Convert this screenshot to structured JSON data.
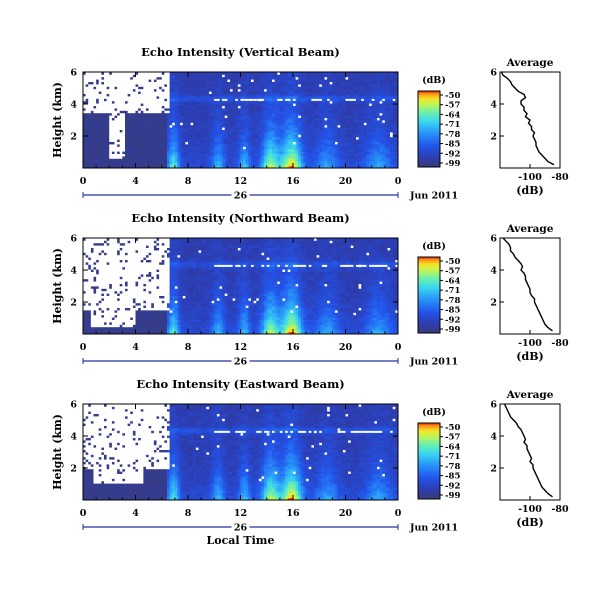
{
  "chart_data": [
    {
      "type": "heatmap",
      "title": "Echo Intensity (Vertical Beam)",
      "ylabel": "Height (km)",
      "ylim": [
        0,
        6
      ],
      "yticks": [
        "6",
        "4",
        "2"
      ],
      "xlim": [
        0,
        24
      ],
      "xticks": [
        "0",
        "4",
        "8",
        "12",
        "16",
        "20",
        "0"
      ],
      "day_label": "26",
      "date_label": "Jun 2011",
      "colorbar": {
        "unit": "(dB)",
        "ticks": [
          "-50",
          "-57",
          "-64",
          "-71",
          "-78",
          "-85",
          "-92",
          "-99"
        ]
      },
      "no_data_until_hour": 6.5,
      "no_data_blocks": [
        [
          0,
          3.5,
          6.5,
          6.0
        ],
        [
          2.0,
          0.6,
          3.2,
          3.6
        ]
      ]
    },
    {
      "type": "heatmap",
      "title": "Echo Intensity (Northward Beam)",
      "ylabel": "Height (km)",
      "ylim": [
        0,
        6
      ],
      "yticks": [
        "6",
        "4",
        "2"
      ],
      "xlim": [
        0,
        24
      ],
      "xticks": [
        "0",
        "4",
        "8",
        "12",
        "16",
        "20",
        "0"
      ],
      "day_label": "26",
      "date_label": "Jun 2011",
      "colorbar": {
        "unit": "(dB)",
        "ticks": [
          "-50",
          "-57",
          "-64",
          "-71",
          "-78",
          "-85",
          "-92",
          "-99"
        ]
      },
      "no_data_until_hour": 6.5,
      "no_data_blocks": [
        [
          0,
          1.5,
          6.5,
          6.0
        ],
        [
          0.6,
          0.5,
          4.0,
          2.2
        ]
      ]
    },
    {
      "type": "heatmap",
      "title": "Echo Intensity (Eastward Beam)",
      "ylabel": "Height (km)",
      "xlabel": "Local Time",
      "ylim": [
        0,
        6
      ],
      "yticks": [
        "6",
        "4",
        "2"
      ],
      "xlim": [
        0,
        24
      ],
      "xticks": [
        "0",
        "4",
        "8",
        "12",
        "16",
        "20",
        "0"
      ],
      "day_label": "26",
      "date_label": "Jun 2011",
      "colorbar": {
        "unit": "(dB)",
        "ticks": [
          "-50",
          "-57",
          "-64",
          "-71",
          "-78",
          "-85",
          "-92",
          "-99"
        ]
      },
      "no_data_until_hour": 6.5,
      "no_data_blocks": [
        [
          0,
          2.0,
          6.5,
          6.0
        ],
        [
          0.8,
          1.0,
          4.5,
          3.2
        ]
      ]
    },
    {
      "type": "line",
      "title": "Average",
      "xlabel": "(dB)",
      "xlim": [
        -120,
        -80
      ],
      "xticks": [
        "-100",
        "-80"
      ],
      "ylim": [
        0,
        6
      ],
      "yticks": [
        "6",
        "4",
        "2"
      ],
      "y": [
        6.0,
        5.8,
        5.6,
        5.4,
        5.2,
        5.0,
        4.8,
        4.6,
        4.4,
        4.2,
        4.0,
        3.8,
        3.6,
        3.4,
        3.2,
        3.0,
        2.8,
        2.6,
        2.4,
        2.2,
        2.0,
        1.8,
        1.6,
        1.4,
        1.2,
        1.0,
        0.8,
        0.6,
        0.4,
        0.2
      ],
      "x": [
        -119,
        -118,
        -115,
        -113,
        -112,
        -110,
        -108,
        -104,
        -103,
        -106,
        -106,
        -104,
        -104,
        -102,
        -103,
        -100,
        -101,
        -99,
        -99,
        -97,
        -98,
        -97,
        -96,
        -96,
        -95,
        -94,
        -92,
        -90,
        -88,
        -84
      ]
    },
    {
      "type": "line",
      "title": "Average",
      "xlabel": "(dB)",
      "xlim": [
        -120,
        -80
      ],
      "xticks": [
        "-100",
        "-80"
      ],
      "ylim": [
        0,
        6
      ],
      "yticks": [
        "6",
        "4",
        "2"
      ],
      "y": [
        6.0,
        5.8,
        5.6,
        5.4,
        5.2,
        5.0,
        4.8,
        4.6,
        4.4,
        4.2,
        4.0,
        3.8,
        3.6,
        3.4,
        3.2,
        3.0,
        2.8,
        2.6,
        2.4,
        2.2,
        2.0,
        1.8,
        1.6,
        1.4,
        1.2,
        1.0,
        0.8,
        0.6,
        0.4,
        0.2
      ],
      "x": [
        -118,
        -116,
        -114,
        -113,
        -113,
        -111,
        -110,
        -108,
        -106,
        -105,
        -106,
        -104,
        -103,
        -103,
        -102,
        -101,
        -100,
        -100,
        -99,
        -97,
        -97,
        -96,
        -95,
        -94,
        -93,
        -92,
        -91,
        -90,
        -88,
        -85
      ]
    },
    {
      "type": "line",
      "title": "Average",
      "xlabel": "(dB)",
      "xlim": [
        -120,
        -80
      ],
      "xticks": [
        "-100",
        "-80"
      ],
      "ylim": [
        0,
        6
      ],
      "yticks": [
        "6",
        "4",
        "2"
      ],
      "y": [
        6.0,
        5.8,
        5.6,
        5.4,
        5.2,
        5.0,
        4.8,
        4.6,
        4.4,
        4.2,
        4.0,
        3.8,
        3.6,
        3.4,
        3.2,
        3.0,
        2.8,
        2.6,
        2.4,
        2.2,
        2.0,
        1.8,
        1.6,
        1.4,
        1.2,
        1.0,
        0.8,
        0.6,
        0.4,
        0.2
      ],
      "x": [
        -117,
        -116,
        -115,
        -114,
        -113,
        -111,
        -109,
        -108,
        -106,
        -105,
        -104,
        -103,
        -104,
        -102,
        -102,
        -101,
        -100,
        -99,
        -100,
        -98,
        -98,
        -97,
        -96,
        -95,
        -94,
        -93,
        -92,
        -90,
        -88,
        -85
      ]
    }
  ]
}
